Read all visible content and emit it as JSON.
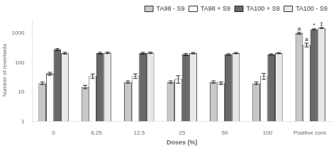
{
  "chart_data": {
    "type": "bar",
    "xlabel": "Doses (%)",
    "ylabel": "Number of revertants",
    "categories": [
      "0",
      "6.25",
      "12.5",
      "25",
      "50",
      "100",
      "Positive cont."
    ],
    "series": [
      {
        "name": "TA98 - S9",
        "color": "#c8c8c8",
        "values": [
          20,
          15,
          22,
          22,
          22,
          20,
          1000
        ],
        "errors": [
          2,
          2,
          2,
          2,
          2,
          2,
          80
        ]
      },
      {
        "name": "TA98 + S9",
        "color": "#ffffff",
        "values": [
          42,
          35,
          35,
          28,
          20,
          35,
          400
        ],
        "errors": [
          5,
          6,
          6,
          8,
          2,
          8,
          60
        ]
      },
      {
        "name": "TA100 + S9",
        "color": "#686868",
        "values": [
          280,
          210,
          210,
          190,
          190,
          190,
          1350
        ],
        "errors": [
          20,
          15,
          15,
          15,
          10,
          10,
          50
        ]
      },
      {
        "name": "TA100 - S9",
        "color": "#e8e8e8",
        "values": [
          210,
          215,
          215,
          210,
          210,
          210,
          1500
        ],
        "errors": [
          15,
          12,
          12,
          12,
          10,
          10,
          60
        ]
      }
    ],
    "log": "y",
    "ylim": [
      1,
      3000
    ],
    "yticks": [
      1,
      10,
      100,
      1000
    ],
    "grid": false,
    "legend": "upper right",
    "annotations": [
      {
        "text": "a",
        "series": "TA98 - S9",
        "category": "Positive cont."
      },
      {
        "text": "a",
        "series": "TA98 + S9",
        "category": "Positive cont."
      },
      {
        "text": "*",
        "series": "TA100 + S9",
        "category": "Positive cont."
      },
      {
        "text": "‡",
        "series": "TA100 - S9",
        "category": "Positive cont."
      }
    ]
  }
}
